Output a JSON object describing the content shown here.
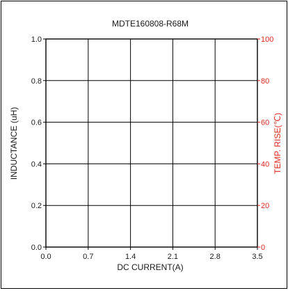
{
  "chart_data": {
    "type": "line",
    "title": "MDTE160808-R68M",
    "xlabel": "DC CURRENT(A)",
    "ylabel": "INDUCTANCE (uH)",
    "y2label": "TEMP. RISE(℃)",
    "xlim": [
      0.0,
      3.5
    ],
    "ylim": [
      0.0,
      1.0
    ],
    "y2lim": [
      0,
      100
    ],
    "x_ticks": [
      "0.0",
      "0.7",
      "1.4",
      "2.1",
      "2.8",
      "3.5"
    ],
    "y_ticks": [
      "0.0",
      "0.2",
      "0.4",
      "0.6",
      "0.8",
      "1.0"
    ],
    "y2_ticks": [
      "0",
      "20",
      "40",
      "60",
      "80",
      "100"
    ],
    "grid": true,
    "series": [],
    "colors": {
      "axis": "#000000",
      "secondary_axis": "#e0281e",
      "text": "#1a1a1a"
    }
  }
}
